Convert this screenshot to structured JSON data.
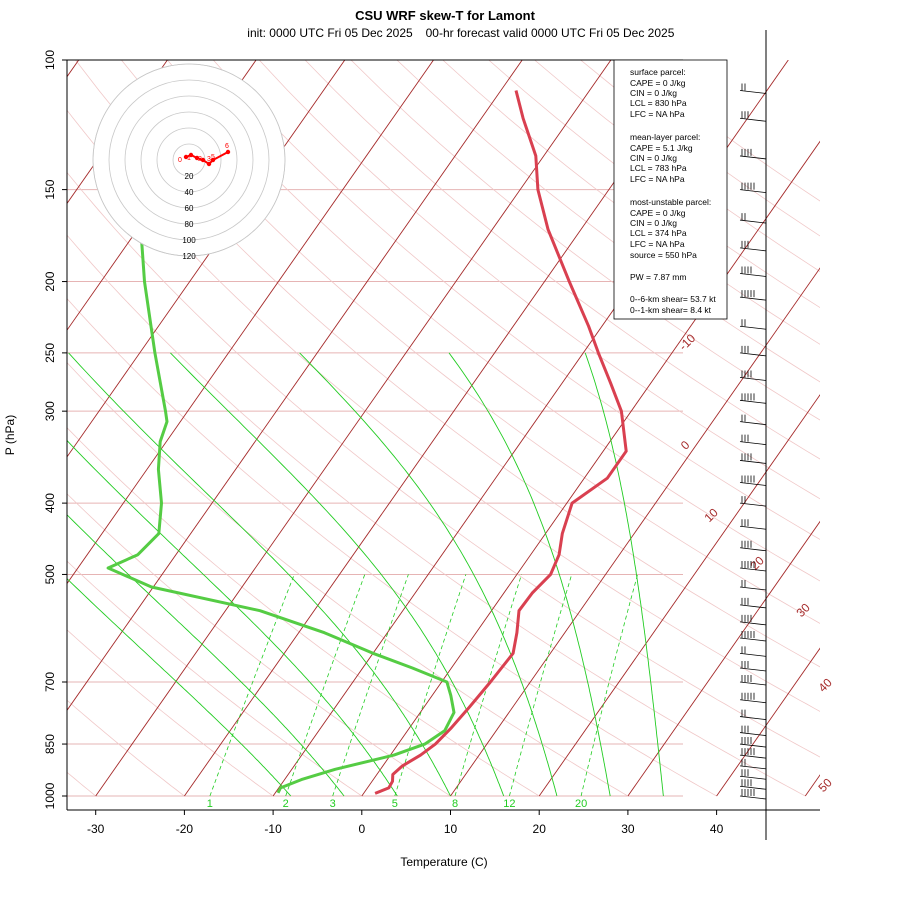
{
  "chart_data": {
    "type": "line",
    "title": "CSU WRF skew-T for Lamont",
    "subtitle_init": "init: 0000 UTC Fri 05 Dec 2025",
    "subtitle_valid": "00-hr forecast valid 0000 UTC Fri 05 Dec 2025",
    "xlabel": "Temperature (C)",
    "ylabel": "P (hPa)",
    "xlim": [
      -33,
      43
    ],
    "ylim": [
      1000,
      100
    ],
    "x_ticks": [
      -30,
      -20,
      -10,
      0,
      10,
      20,
      30,
      40
    ],
    "p_ticks": [
      100,
      150,
      200,
      250,
      300,
      400,
      500,
      700,
      850,
      1000
    ],
    "isotherm_labels": [
      -10,
      0,
      10,
      20,
      30,
      40,
      50
    ],
    "mixing_ratio_labels": [
      "1",
      "2",
      "3",
      "5",
      "8",
      "12",
      "20"
    ],
    "series": [
      {
        "name": "temperature",
        "color": "#d94050",
        "points": [
          {
            "p": 992,
            "t": 1.3
          },
          {
            "p": 975,
            "t": 2.4
          },
          {
            "p": 955,
            "t": 2.3
          },
          {
            "p": 935,
            "t": 1.8
          },
          {
            "p": 910,
            "t": 2.2
          },
          {
            "p": 880,
            "t": 3.4
          },
          {
            "p": 850,
            "t": 4.2
          },
          {
            "p": 810,
            "t": 4.7
          },
          {
            "p": 760,
            "t": 5.1
          },
          {
            "p": 700,
            "t": 5.5
          },
          {
            "p": 640,
            "t": 5.8
          },
          {
            "p": 600,
            "t": 4.6
          },
          {
            "p": 560,
            "t": 3.1
          },
          {
            "p": 530,
            "t": 3.2
          },
          {
            "p": 500,
            "t": 3.8
          },
          {
            "p": 470,
            "t": 3.2
          },
          {
            "p": 440,
            "t": 1.9
          },
          {
            "p": 400,
            "t": 0.6
          },
          {
            "p": 370,
            "t": 2.6
          },
          {
            "p": 340,
            "t": 2.6
          },
          {
            "p": 300,
            "t": -1.1
          },
          {
            "p": 275,
            "t": -4.5
          },
          {
            "p": 250,
            "t": -8.3
          },
          {
            "p": 230,
            "t": -11.5
          },
          {
            "p": 200,
            "t": -17.2
          },
          {
            "p": 170,
            "t": -23.7
          },
          {
            "p": 150,
            "t": -28.0
          },
          {
            "p": 135,
            "t": -30.9
          },
          {
            "p": 120,
            "t": -35.3
          },
          {
            "p": 110,
            "t": -38.3
          }
        ]
      },
      {
        "name": "dewpoint",
        "color": "#55cc44",
        "points": [
          {
            "p": 990,
            "t": -9.7
          },
          {
            "p": 975,
            "t": -9.8
          },
          {
            "p": 950,
            "t": -8.1
          },
          {
            "p": 920,
            "t": -5.1
          },
          {
            "p": 880,
            "t": 0.4
          },
          {
            "p": 850,
            "t": 3.0
          },
          {
            "p": 815,
            "t": 4.2
          },
          {
            "p": 770,
            "t": 3.8
          },
          {
            "p": 730,
            "t": 2.1
          },
          {
            "p": 700,
            "t": 0.6
          },
          {
            "p": 670,
            "t": -4.4
          },
          {
            "p": 640,
            "t": -10.0
          },
          {
            "p": 600,
            "t": -17.1
          },
          {
            "p": 560,
            "t": -26.1
          },
          {
            "p": 520,
            "t": -40.2
          },
          {
            "p": 490,
            "t": -46.6
          },
          {
            "p": 470,
            "t": -44.3
          },
          {
            "p": 440,
            "t": -43.6
          },
          {
            "p": 400,
            "t": -45.7
          },
          {
            "p": 360,
            "t": -48.7
          },
          {
            "p": 330,
            "t": -50.7
          },
          {
            "p": 310,
            "t": -51.5
          },
          {
            "p": 300,
            "t": -52.5
          },
          {
            "p": 250,
            "t": -58.3
          },
          {
            "p": 200,
            "t": -65.1
          },
          {
            "p": 175,
            "t": -68.8
          }
        ]
      }
    ],
    "wind_barb_levels": [
      110,
      120,
      135,
      150,
      165,
      180,
      195,
      210,
      230,
      250,
      270,
      290,
      310,
      330,
      350,
      375,
      400,
      430,
      460,
      490,
      520,
      550,
      580,
      610,
      640,
      670,
      700,
      740,
      780,
      820,
      850,
      880,
      910,
      940,
      970,
      1000
    ],
    "parcel_stats": {
      "surface_header": "surface parcel:",
      "surface": [
        "CAPE = 0 J/kg",
        "CIN = 0 J/kg",
        "LCL = 830 hPa",
        "LFC = NA hPa"
      ],
      "mean_layer_header": "mean-layer parcel:",
      "mean_layer": [
        "CAPE = 5.1 J/kg",
        "CIN = 0 J/kg",
        "LCL = 783 hPa",
        "LFC = NA hPa"
      ],
      "most_unstable_header": "most-unstable parcel:",
      "most_unstable": [
        "CAPE = 0 J/kg",
        "CIN = 0 J/kg",
        "LCL = 374 hPa",
        "LFC = NA hPa",
        "source = 550 hPa"
      ],
      "pw": "PW =  7.87 mm",
      "shear_06": "0--6-km shear= 53.7 kt",
      "shear_01": "0--1-km shear= 8.4 kt"
    },
    "hodograph": {
      "ring_labels": [
        "20",
        "40",
        "60",
        "80",
        "100",
        "120"
      ],
      "height_labels": [
        "0",
        "1",
        "2",
        "3",
        "5",
        "6"
      ]
    },
    "colors": {
      "isotherm": "#a52a2a",
      "isobar": "#e6b4b4",
      "dry_adiabat": "#f0c8c8",
      "moist_adiabat": "#22cc22",
      "mixing_ratio": "#22cc22",
      "temperature": "#d94050",
      "dewpoint": "#55cc44",
      "hodograph": "#ff0000"
    }
  }
}
